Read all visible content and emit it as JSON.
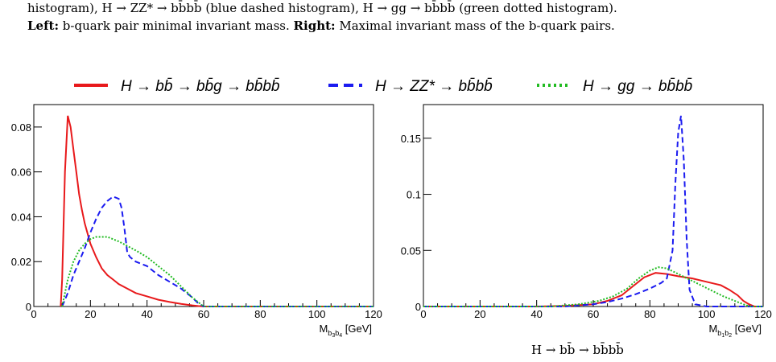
{
  "caption": {
    "line1": "histogram), H → ZZ* → bb̄bb̄ (blue dashed histogram), H → gg → bb̄bb̄ (green dotted histogram).",
    "line2_bold_left": "Left:",
    "line2_left": "b-quark pair minimal invariant mass.",
    "line2_bold_right": "Right:",
    "line2_right": "Maximal invariant mass of the b-quark pairs.",
    "line3": "H → bb̄ → bb̄bb̄"
  },
  "legend": [
    {
      "label": "H → bb̄ → bb̄g → bb̄bb̄",
      "color": "#e8191b",
      "style": "solid"
    },
    {
      "label": "H → ZZ* → bb̄bb̄",
      "color": "#1b1bf0",
      "style": "dashed"
    },
    {
      "label": "H → gg → bb̄bb̄",
      "color": "#22bb22",
      "style": "dotted"
    }
  ],
  "chart_data": [
    {
      "type": "line",
      "xlabel": "M_{b3b4} [GeV]",
      "xlim": [
        0,
        120
      ],
      "ylim": [
        0,
        0.09
      ],
      "xticks": [
        0,
        20,
        40,
        60,
        80,
        100,
        120
      ],
      "yticks": [
        0,
        0.02,
        0.04,
        0.06,
        0.08
      ],
      "ytick_labels": [
        "0",
        "0.02",
        "0.04",
        "0.06",
        "0.08"
      ],
      "series": [
        {
          "name": "H → bb̄ → bb̄g → bb̄bb̄",
          "color": "#e8191b",
          "style": "solid",
          "x": [
            9.5,
            10,
            11,
            12,
            13,
            14,
            15,
            16,
            17,
            18,
            20,
            22,
            24,
            26,
            28,
            30,
            33,
            36,
            40,
            44,
            48,
            52,
            56,
            58,
            60,
            120
          ],
          "y": [
            0,
            0.012,
            0.06,
            0.085,
            0.08,
            0.07,
            0.06,
            0.05,
            0.043,
            0.037,
            0.028,
            0.022,
            0.017,
            0.014,
            0.012,
            0.01,
            0.008,
            0.006,
            0.0045,
            0.003,
            0.002,
            0.0012,
            0.0005,
            0.0002,
            0,
            0
          ]
        },
        {
          "name": "H → ZZ* → bb̄bb̄",
          "color": "#1b1bf0",
          "style": "dashed",
          "x": [
            10,
            11,
            12,
            14,
            16,
            18,
            20,
            22,
            24,
            26,
            28,
            30,
            31,
            32,
            33,
            34,
            36,
            40,
            44,
            48,
            52,
            56,
            58,
            60,
            120
          ],
          "y": [
            0,
            0.003,
            0.006,
            0.014,
            0.02,
            0.026,
            0.033,
            0.039,
            0.044,
            0.047,
            0.049,
            0.048,
            0.044,
            0.035,
            0.024,
            0.022,
            0.02,
            0.018,
            0.014,
            0.011,
            0.008,
            0.004,
            0.0015,
            0,
            0
          ]
        },
        {
          "name": "H → gg → bb̄bb̄",
          "color": "#22bb22",
          "style": "dotted",
          "x": [
            10,
            11,
            12,
            14,
            16,
            18,
            20,
            22,
            24,
            26,
            28,
            30,
            33,
            36,
            40,
            44,
            48,
            52,
            56,
            60,
            120
          ],
          "y": [
            0,
            0.006,
            0.012,
            0.02,
            0.025,
            0.028,
            0.03,
            0.031,
            0.031,
            0.031,
            0.03,
            0.029,
            0.027,
            0.025,
            0.022,
            0.018,
            0.014,
            0.009,
            0.004,
            0,
            0
          ]
        }
      ]
    },
    {
      "type": "line",
      "xlabel": "M_{b1b2} [GeV]",
      "xlim": [
        0,
        120
      ],
      "ylim": [
        0,
        0.18
      ],
      "xticks": [
        0,
        20,
        40,
        60,
        80,
        100,
        120
      ],
      "yticks": [
        0,
        0.05,
        0.1,
        0.15
      ],
      "ytick_labels": [
        "0",
        "0.05",
        "0.1",
        "0.15"
      ],
      "series": [
        {
          "name": "H → bb̄ → bb̄g → bb̄bb̄",
          "color": "#e8191b",
          "style": "solid",
          "x": [
            0,
            40,
            50,
            60,
            65,
            70,
            74,
            78,
            82,
            86,
            90,
            95,
            100,
            105,
            108,
            111,
            113,
            115,
            117,
            120
          ],
          "y": [
            0,
            0,
            0.0005,
            0.002,
            0.005,
            0.01,
            0.018,
            0.026,
            0.03,
            0.029,
            0.027,
            0.025,
            0.022,
            0.019,
            0.015,
            0.01,
            0.005,
            0.002,
            0,
            0
          ]
        },
        {
          "name": "H → ZZ* → bb̄bb̄",
          "color": "#1b1bf0",
          "style": "dashed",
          "x": [
            0,
            50,
            60,
            65,
            70,
            75,
            80,
            84,
            86,
            88,
            89,
            90,
            91,
            92,
            93,
            94,
            96,
            100,
            105,
            120
          ],
          "y": [
            0,
            0,
            0.002,
            0.004,
            0.007,
            0.011,
            0.016,
            0.021,
            0.025,
            0.05,
            0.11,
            0.155,
            0.17,
            0.13,
            0.06,
            0.015,
            0.002,
            0,
            0,
            0
          ]
        },
        {
          "name": "H → gg → bb̄bb̄",
          "color": "#22bb22",
          "style": "dotted",
          "x": [
            0,
            45,
            55,
            62,
            67,
            72,
            76,
            80,
            83,
            86,
            90,
            94,
            98,
            102,
            106,
            110,
            114,
            116,
            120
          ],
          "y": [
            0,
            0,
            0.002,
            0.005,
            0.009,
            0.016,
            0.025,
            0.032,
            0.035,
            0.034,
            0.029,
            0.024,
            0.019,
            0.014,
            0.009,
            0.005,
            0.001,
            0,
            0
          ]
        }
      ]
    }
  ]
}
